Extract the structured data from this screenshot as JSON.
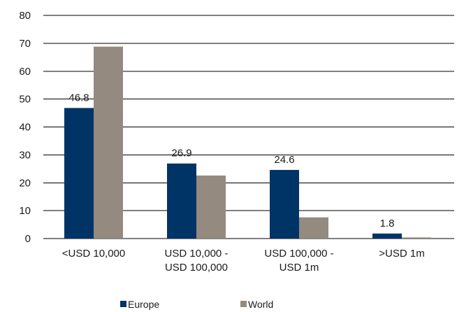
{
  "chart_data": {
    "type": "bar",
    "categories": [
      [
        "<USD 10,000"
      ],
      [
        "USD 10,000 -",
        "USD 100,000"
      ],
      [
        "USD 100,000 -",
        "USD 1m"
      ],
      [
        ">USD 1m"
      ]
    ],
    "series": [
      {
        "name": "Europe",
        "values": [
          46.8,
          26.9,
          24.6,
          1.8
        ],
        "color": "#003366",
        "labels": [
          "46.8",
          "26.9",
          "24.6",
          "1.8"
        ]
      },
      {
        "name": "World",
        "values": [
          68.8,
          22.6,
          7.6,
          0.4
        ],
        "color": "#948a80"
      }
    ],
    "ylim": [
      0,
      80
    ],
    "yticks": [
      0,
      10,
      20,
      30,
      40,
      50,
      60,
      70,
      80
    ],
    "grid": true,
    "legend_position": "bottom",
    "title": "",
    "xlabel": "",
    "ylabel": ""
  }
}
